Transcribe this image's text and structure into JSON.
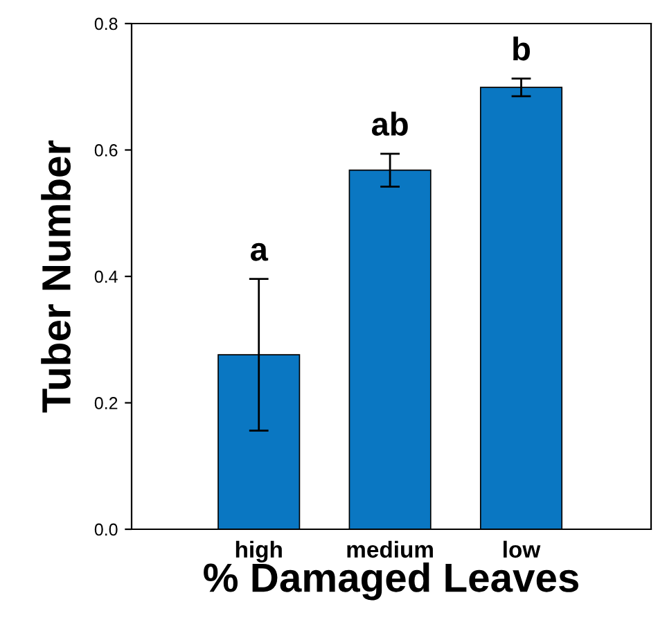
{
  "chart_data": {
    "type": "bar",
    "xlabel": "% Damaged Leaves",
    "ylabel": "Tuber Number",
    "categories": [
      "high",
      "medium",
      "low"
    ],
    "values": [
      0.276,
      0.568,
      0.699
    ],
    "errors": [
      0.12,
      0.026,
      0.014
    ],
    "color": "#0a77c2",
    "ylim": [
      0.0,
      0.8
    ],
    "yticks": [
      {
        "value": 0.0,
        "label": "0.0"
      },
      {
        "value": 0.2,
        "label": "0.2"
      },
      {
        "value": 0.4,
        "label": "0.4"
      },
      {
        "value": 0.6,
        "label": "0.6"
      },
      {
        "value": 0.8,
        "label": "0.8"
      }
    ],
    "grid": false,
    "legend": false,
    "annotations": [
      "a",
      "ab",
      "b"
    ]
  }
}
